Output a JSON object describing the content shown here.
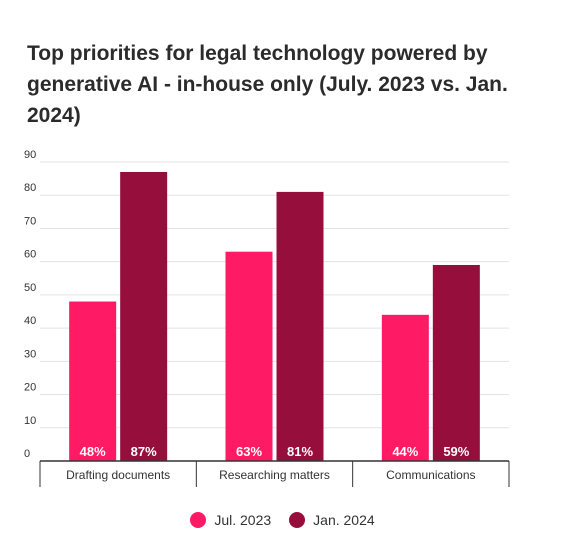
{
  "chart_data": {
    "type": "bar",
    "title": "Top priorities for legal technology powered by generative AI - in-house only (July. 2023 vs. Jan. 2024)",
    "categories": [
      "Drafting documents",
      "Researching matters",
      "Communications"
    ],
    "series": [
      {
        "name": "Jul. 2023",
        "values": [
          48,
          63,
          44
        ],
        "labels": [
          "48%",
          "63%",
          "44%"
        ],
        "color": "#ff1a66"
      },
      {
        "name": "Jan. 2024",
        "values": [
          87,
          81,
          59
        ],
        "labels": [
          "87%",
          "81%",
          "59%"
        ],
        "color": "#960f3c"
      }
    ],
    "ylim": [
      0,
      90
    ],
    "yticks": [
      0,
      10,
      20,
      30,
      40,
      50,
      60,
      70,
      80,
      90
    ],
    "grid": true,
    "legend": "bottom-center"
  }
}
